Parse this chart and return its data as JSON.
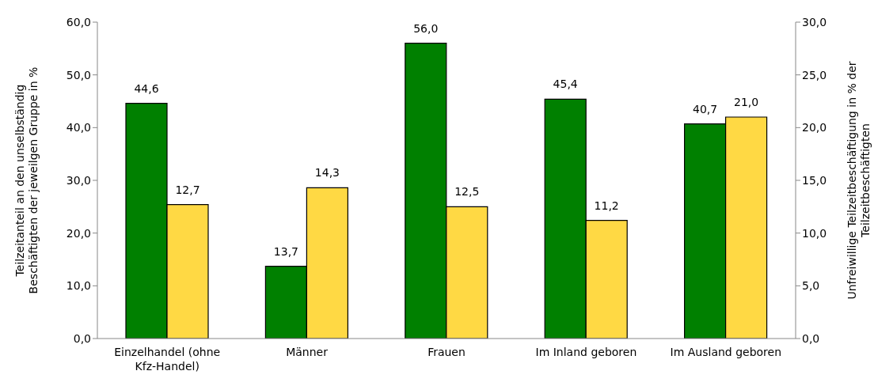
{
  "chart_data": {
    "type": "bar",
    "categories": [
      "Einzelhandel (ohne Kfz-Handel)",
      "Männer",
      "Frauen",
      "Im Inland geboren",
      "Im Ausland geboren"
    ],
    "ylabel": "Teilzeitanteil an den unselbständig Beschäftigten der jeweilgen Gruppe in %",
    "y2label": "Unfreiwillige Teilzeitbeschäftigung in % der Teilzeitbeschäftigten",
    "series": [
      {
        "color": "#008000",
        "values": [
          44.6,
          13.7,
          56.0,
          45.4,
          40.7
        ],
        "value_labels": [
          "44,6",
          "13,7",
          "56,0",
          "45,4",
          "40,7"
        ]
      },
      {
        "color": "#ffd944",
        "axis": "y2",
        "values": [
          12.7,
          14.3,
          12.5,
          11.2,
          21.0
        ],
        "value_labels": [
          "12,7",
          "14,3",
          "12,5",
          "11,2",
          "21,0"
        ]
      }
    ],
    "ylim": [
      0,
      60
    ],
    "yticks": [
      {
        "value": 0,
        "label": "0,0"
      },
      {
        "value": 10,
        "label": "10,0"
      },
      {
        "value": 20,
        "label": "20,0"
      },
      {
        "value": 30,
        "label": "30,0"
      },
      {
        "value": 40,
        "label": "40,0"
      },
      {
        "value": 50,
        "label": "50,0"
      },
      {
        "value": 60,
        "label": "60,0"
      }
    ],
    "y2lim": [
      0,
      30
    ],
    "y2ticks": [
      {
        "value": 0,
        "label": "0,0"
      },
      {
        "value": 5,
        "label": "5,0"
      },
      {
        "value": 10,
        "label": "10,0"
      },
      {
        "value": 15,
        "label": "15,0"
      },
      {
        "value": 20,
        "label": "20,0"
      },
      {
        "value": 25,
        "label": "25,0"
      },
      {
        "value": 30,
        "label": "30,0"
      }
    ],
    "grid": false,
    "legend": false
  }
}
